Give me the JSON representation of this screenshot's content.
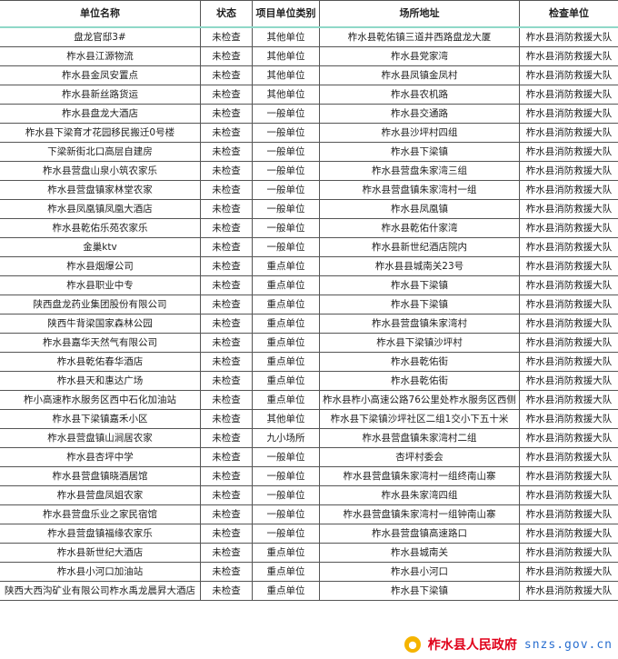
{
  "headers": [
    "单位名称",
    "状态",
    "项目单位类别",
    "场所地址",
    "检查单位"
  ],
  "rows": [
    [
      "盘龙官邸3#",
      "未检查",
      "其他单位",
      "柞水县乾佑镇三道井西路盘龙大厦",
      "柞水县消防救援大队"
    ],
    [
      "柞水县江源物流",
      "未检查",
      "其他单位",
      "柞水县党家湾",
      "柞水县消防救援大队"
    ],
    [
      "柞水县金凤安置点",
      "未检查",
      "其他单位",
      "柞水县凤镇金凤村",
      "柞水县消防救援大队"
    ],
    [
      "柞水县新丝路货运",
      "未检查",
      "其他单位",
      "柞水县农机路",
      "柞水县消防救援大队"
    ],
    [
      "柞水县盘龙大酒店",
      "未检查",
      "一般单位",
      "柞水县交通路",
      "柞水县消防救援大队"
    ],
    [
      "柞水县下梁育才花园移民搬迁0号楼",
      "未检查",
      "一般单位",
      "柞水县沙坪村四组",
      "柞水县消防救援大队"
    ],
    [
      "下梁新街北口高层自建房",
      "未检查",
      "一般单位",
      "柞水县下梁镇",
      "柞水县消防救援大队"
    ],
    [
      "柞水县营盘山泉小筑农家乐",
      "未检查",
      "一般单位",
      "柞水县营盘朱家湾三组",
      "柞水县消防救援大队"
    ],
    [
      "柞水县营盘镇家林堂农家",
      "未检查",
      "一般单位",
      "柞水县营盘镇朱家湾村一组",
      "柞水县消防救援大队"
    ],
    [
      "柞水县凤凰镇凤凰大酒店",
      "未检查",
      "一般单位",
      "柞水县凤凰镇",
      "柞水县消防救援大队"
    ],
    [
      "柞水县乾佑乐苑农家乐",
      "未检查",
      "一般单位",
      "柞水县乾佑什家湾",
      "柞水县消防救援大队"
    ],
    [
      "金巢ktv",
      "未检查",
      "一般单位",
      "柞水县新世纪酒店院内",
      "柞水县消防救援大队"
    ],
    [
      "柞水县烟爆公司",
      "未检查",
      "重点单位",
      "柞水县县城南关23号",
      "柞水县消防救援大队"
    ],
    [
      "柞水县职业中专",
      "未检查",
      "重点单位",
      "柞水县下梁镇",
      "柞水县消防救援大队"
    ],
    [
      "陕西盘龙药业集团股份有限公司",
      "未检查",
      "重点单位",
      "柞水县下梁镇",
      "柞水县消防救援大队"
    ],
    [
      "陕西牛背梁国家森林公园",
      "未检查",
      "重点单位",
      "柞水县营盘镇朱家湾村",
      "柞水县消防救援大队"
    ],
    [
      "柞水县嘉华天然气有限公司",
      "未检查",
      "重点单位",
      "柞水县下梁镇沙坪村",
      "柞水县消防救援大队"
    ],
    [
      "柞水县乾佑春华酒店",
      "未检查",
      "重点单位",
      "柞水县乾佑街",
      "柞水县消防救援大队"
    ],
    [
      "柞水县天和惠达广场",
      "未检查",
      "重点单位",
      "柞水县乾佑街",
      "柞水县消防救援大队"
    ],
    [
      "柞小高速柞水服务区西中石化加油站",
      "未检查",
      "重点单位",
      "柞水县柞小高速公路76公里处柞水服务区西侧",
      "柞水县消防救援大队"
    ],
    [
      "柞水县下梁镇嘉禾小区",
      "未检查",
      "其他单位",
      "柞水县下梁镇沙坪社区二组1交小下五十米",
      "柞水县消防救援大队"
    ],
    [
      "柞水县营盘镇山涧居农家",
      "未检查",
      "九小场所",
      "柞水县营盘镇朱家湾村二组",
      "柞水县消防救援大队"
    ],
    [
      "柞水县杏坪中学",
      "未检查",
      "一般单位",
      "杏坪村委会",
      "柞水县消防救援大队"
    ],
    [
      "柞水县营盘镇晓酒居馆",
      "未检查",
      "一般单位",
      "柞水县营盘镇朱家湾村一组终南山寨",
      "柞水县消防救援大队"
    ],
    [
      "柞水县营盘凤姐农家",
      "未检查",
      "一般单位",
      "柞水县朱家湾四组",
      "柞水县消防救援大队"
    ],
    [
      "柞水县营盘乐业之家民宿馆",
      "未检查",
      "一般单位",
      "柞水县营盘镇朱家湾村一组钟南山寨",
      "柞水县消防救援大队"
    ],
    [
      "柞水县营盘镇福缘农家乐",
      "未检查",
      "一般单位",
      "柞水县营盘镇高速路口",
      "柞水县消防救援大队"
    ],
    [
      "柞水县新世纪大酒店",
      "未检查",
      "重点单位",
      "柞水县城南关",
      "柞水县消防救援大队"
    ],
    [
      "柞水县小河口加油站",
      "未检查",
      "重点单位",
      "柞水县小河口",
      "柞水县消防救援大队"
    ],
    [
      "陕西大西沟矿业有限公司柞水禹龙晨昇大酒店",
      "未检查",
      "重点单位",
      "柞水县下梁镇",
      "柞水县消防救援大队"
    ]
  ],
  "watermark": {
    "title": "柞水县人民政府",
    "url": "snzs.gov.cn"
  }
}
